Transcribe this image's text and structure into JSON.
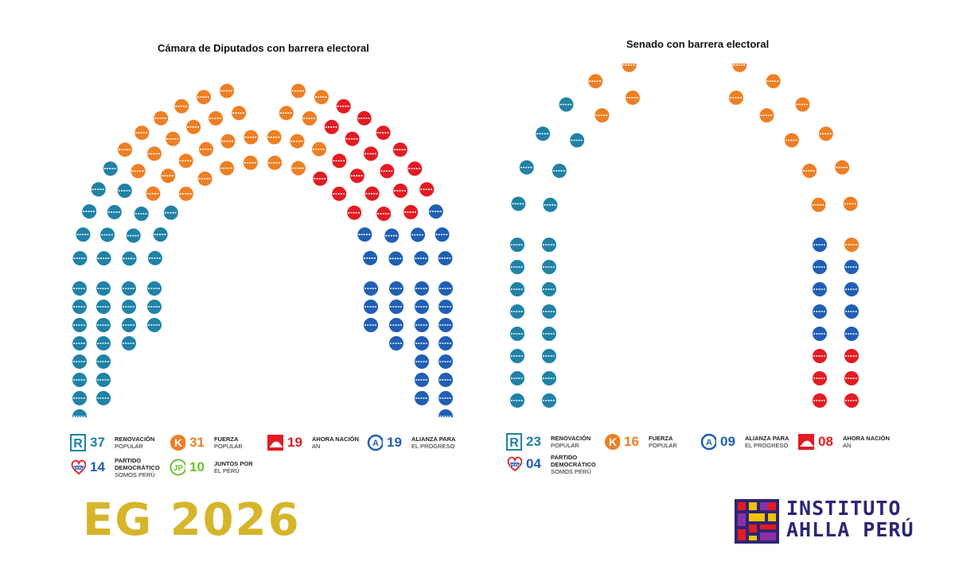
{
  "chart_data": [
    {
      "type": "parliament",
      "title": "Cámara de Diputados con barrera electoral",
      "parties": [
        {
          "name": "RENOVACIÓN POPULAR",
          "line1": "RENOVACIÓN",
          "line2": "POPULAR",
          "seats": 37,
          "color": "#1f82a6",
          "logo": "R"
        },
        {
          "name": "FUERZA POPULAR",
          "line1": "FUERZA",
          "line2": "POPULAR",
          "seats": 31,
          "color": "#ee7f23",
          "logo": "K"
        },
        {
          "name": "AHORA NACIÓN AN",
          "line1": "AHORA NACIÓN",
          "line2": "AN",
          "seats": 19,
          "color": "#e31b23",
          "logo": "hat"
        },
        {
          "name": "ALIANZA PARA EL PROGRESO",
          "line1": "ALIANZA PARA",
          "line2": "EL PROGRESO",
          "seats": 19,
          "color": "#1f5fb4",
          "logo": "A"
        },
        {
          "name": "PARTIDO DEMOCRÁTICO SOMOS PERÚ",
          "line1": "PARTIDO",
          "line2": "DEMOCRÁTICO",
          "line3": "SOMOS PERÚ",
          "seats": 14,
          "color": "#1f5fb4",
          "logo": "heart",
          "logo_text": "PERÚ"
        },
        {
          "name": "JUNTOS POR EL PERÚ",
          "line1": "JUNTOS POR",
          "line2": "EL PERÚ",
          "seats": 10,
          "color": "#6cbf2a",
          "logo": "JP"
        }
      ],
      "legend_numbers": [
        "37",
        "31",
        "19",
        "19",
        "14",
        "10"
      ]
    },
    {
      "type": "parliament",
      "title": "Senado con barrera electoral",
      "parties": [
        {
          "name": "RENOVACIÓN POPULAR",
          "line1": "RENOVACIÓN",
          "line2": "POPULAR",
          "seats": 23,
          "color": "#1f82a6",
          "logo": "R"
        },
        {
          "name": "FUERZA POPULAR",
          "line1": "FUERZA",
          "line2": "POPULAR",
          "seats": 16,
          "color": "#ee7f23",
          "logo": "K"
        },
        {
          "name": "ALIANZA PARA EL PROGRESO",
          "line1": "ALIANZA PARA",
          "line2": "EL PROGRESO",
          "seats": 9,
          "color": "#1f5fb4",
          "logo": "A"
        },
        {
          "name": "AHORA NACIÓN AN",
          "line1": "AHORA NACIÓN",
          "line2": "AN",
          "seats": 8,
          "color": "#e31b23",
          "logo": "hat"
        },
        {
          "name": "PARTIDO DEMOCRÁTICO SOMOS PERÚ",
          "line1": "PARTIDO",
          "line2": "DEMOCRÁTICO",
          "line3": "SOMOS PERÚ",
          "seats": 4,
          "color": "#1f5fb4",
          "logo": "heart",
          "logo_text": "PERÚ"
        }
      ],
      "legend_numbers": [
        "23",
        "16",
        "09",
        "08",
        "04"
      ]
    }
  ],
  "footer": {
    "event": "EG 2026",
    "institute_line1": "INSTITUTO",
    "institute_line2": "AHLLA PERÚ"
  },
  "colors": {
    "renovacion": "#1f82a6",
    "fuerza": "#ee7f23",
    "ahora": "#e31b23",
    "alianza": "#1f5fb4",
    "somos": "#1f5fb4",
    "juntos": "#6cbf2a",
    "eg": "#d6b52a",
    "institute": "#2d2574"
  }
}
